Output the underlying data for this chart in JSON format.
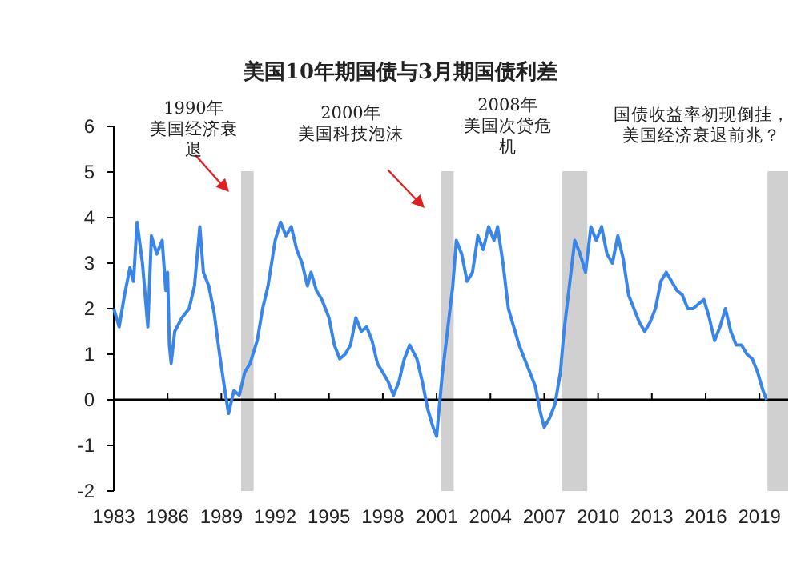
{
  "chart_data": {
    "type": "line",
    "title": "美国10年期国债与3月期国债利差",
    "x": [
      1983.0,
      1983.3,
      1983.6,
      1983.9,
      1984.1,
      1984.3,
      1984.6,
      1984.9,
      1985.1,
      1985.4,
      1985.7,
      1985.9,
      1986.0,
      1986.1,
      1986.2,
      1986.4,
      1986.8,
      1987.2,
      1987.5,
      1987.8,
      1988.0,
      1988.3,
      1988.6,
      1988.9,
      1989.2,
      1989.4,
      1989.7,
      1990.0,
      1990.3,
      1990.6,
      1991.0,
      1991.3,
      1991.6,
      1992.0,
      1992.3,
      1992.6,
      1992.9,
      1993.2,
      1993.5,
      1993.8,
      1994.0,
      1994.3,
      1994.6,
      1995.0,
      1995.3,
      1995.6,
      1995.9,
      1996.2,
      1996.5,
      1996.8,
      1997.1,
      1997.4,
      1997.7,
      1998.0,
      1998.3,
      1998.6,
      1998.9,
      1999.2,
      1999.5,
      1999.9,
      2000.2,
      2000.5,
      2000.8,
      2001.0,
      2001.3,
      2001.6,
      2001.9,
      2002.1,
      2002.4,
      2002.7,
      2003.0,
      2003.3,
      2003.6,
      2003.9,
      2004.2,
      2004.4,
      2004.7,
      2005.0,
      2005.3,
      2005.6,
      2005.9,
      2006.2,
      2006.5,
      2006.8,
      2007.0,
      2007.3,
      2007.6,
      2007.9,
      2008.1,
      2008.4,
      2008.7,
      2009.0,
      2009.3,
      2009.6,
      2009.9,
      2010.2,
      2010.5,
      2010.8,
      2011.1,
      2011.4,
      2011.7,
      2012.0,
      2012.3,
      2012.6,
      2012.9,
      2013.2,
      2013.5,
      2013.8,
      2014.1,
      2014.4,
      2014.7,
      2015.0,
      2015.3,
      2015.6,
      2015.9,
      2016.2,
      2016.5,
      2016.8,
      2017.1,
      2017.4,
      2017.7,
      2018.0,
      2018.3,
      2018.6,
      2018.9,
      2019.2,
      2019.4
    ],
    "series": [
      {
        "color": "#3a86e8",
        "values": [
          2.0,
          1.6,
          2.3,
          2.9,
          2.6,
          3.9,
          3.0,
          1.6,
          3.6,
          3.2,
          3.5,
          2.4,
          2.8,
          1.2,
          0.8,
          1.5,
          1.8,
          2.0,
          2.5,
          3.8,
          2.8,
          2.5,
          1.9,
          1.0,
          0.2,
          -0.3,
          0.2,
          0.1,
          0.6,
          0.8,
          1.3,
          2.0,
          2.5,
          3.5,
          3.9,
          3.6,
          3.8,
          3.3,
          3.0,
          2.5,
          2.8,
          2.4,
          2.2,
          1.8,
          1.2,
          0.9,
          1.0,
          1.2,
          1.8,
          1.5,
          1.6,
          1.3,
          0.8,
          0.6,
          0.4,
          0.1,
          0.4,
          0.9,
          1.2,
          0.9,
          0.4,
          -0.2,
          -0.6,
          -0.8,
          0.5,
          1.5,
          2.5,
          3.5,
          3.2,
          2.6,
          2.8,
          3.6,
          3.3,
          3.8,
          3.5,
          3.8,
          3.0,
          2.0,
          1.6,
          1.2,
          0.9,
          0.6,
          0.3,
          -0.3,
          -0.6,
          -0.4,
          -0.1,
          0.6,
          1.5,
          2.5,
          3.5,
          3.2,
          2.8,
          3.8,
          3.5,
          3.8,
          3.2,
          3.0,
          3.6,
          3.1,
          2.3,
          2.0,
          1.7,
          1.5,
          1.7,
          2.0,
          2.6,
          2.8,
          2.6,
          2.4,
          2.3,
          2.0,
          2.0,
          2.1,
          2.2,
          1.8,
          1.3,
          1.6,
          2.0,
          1.5,
          1.2,
          1.2,
          1.0,
          0.9,
          0.6,
          0.2,
          0.0
        ]
      }
    ],
    "xlim": [
      1983,
      2020.6
    ],
    "ylim": [
      -2,
      6
    ],
    "xticks": [
      1983,
      1986,
      1989,
      1992,
      1995,
      1998,
      2001,
      2004,
      2007,
      2010,
      2013,
      2016,
      2019
    ],
    "yticks": [
      -2,
      -1,
      0,
      1,
      2,
      3,
      4,
      5,
      6
    ],
    "ref_lines": [
      {
        "axis": "y",
        "value": 0,
        "color": "#000000"
      }
    ],
    "bands": [
      {
        "axis": "x",
        "from": 2001.25,
        "to": 2001.95,
        "color": "#d0d0d0"
      },
      {
        "axis": "x",
        "from": 1990.1,
        "to": 1990.8,
        "color": "#d0d0d0"
      },
      {
        "axis": "x",
        "from": 2008.0,
        "to": 2009.4,
        "color": "#d0d0d0"
      },
      {
        "axis": "x",
        "from": 2019.45,
        "to": 2020.6,
        "color": "#d0d0d0"
      }
    ],
    "annotations": [
      "1990年美国经济衰退",
      "2000年美国科技泡沫",
      "2008年美国次贷危机",
      "国债收益率初现倒挂，美国经济衰退前兆？"
    ],
    "line_style": "solid"
  }
}
